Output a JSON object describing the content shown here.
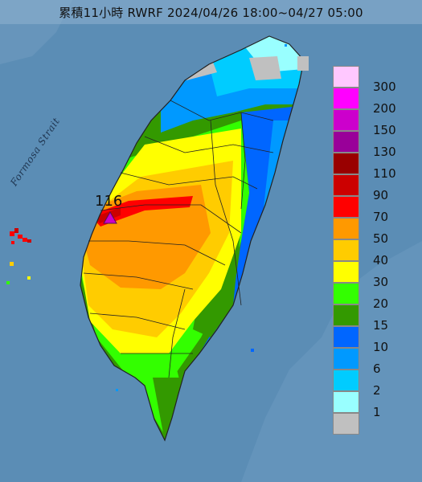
{
  "title": "累積11小時 RWRF 2024/04/26 18:00~04/27 05:00",
  "sea_label": "Formosa Strait",
  "max_label": "116",
  "colors": {
    "sea": "#5d8fb7",
    "land_gray": "#9a9a9a",
    "county_lines": "#222222"
  },
  "legend": {
    "labels": [
      "300",
      "200",
      "150",
      "130",
      "110",
      "90",
      "70",
      "50",
      "40",
      "30",
      "20",
      "15",
      "10",
      "6",
      "2",
      "1"
    ],
    "colors": [
      "#ffc8ff",
      "#ff00ff",
      "#cc00cc",
      "#990099",
      "#990000",
      "#cc0000",
      "#ff0000",
      "#ff9900",
      "#ffcc00",
      "#ffff00",
      "#33ff00",
      "#339900",
      "#0066ff",
      "#0099ff",
      "#00ccff",
      "#99ffff",
      "#c0c0c0"
    ]
  }
}
